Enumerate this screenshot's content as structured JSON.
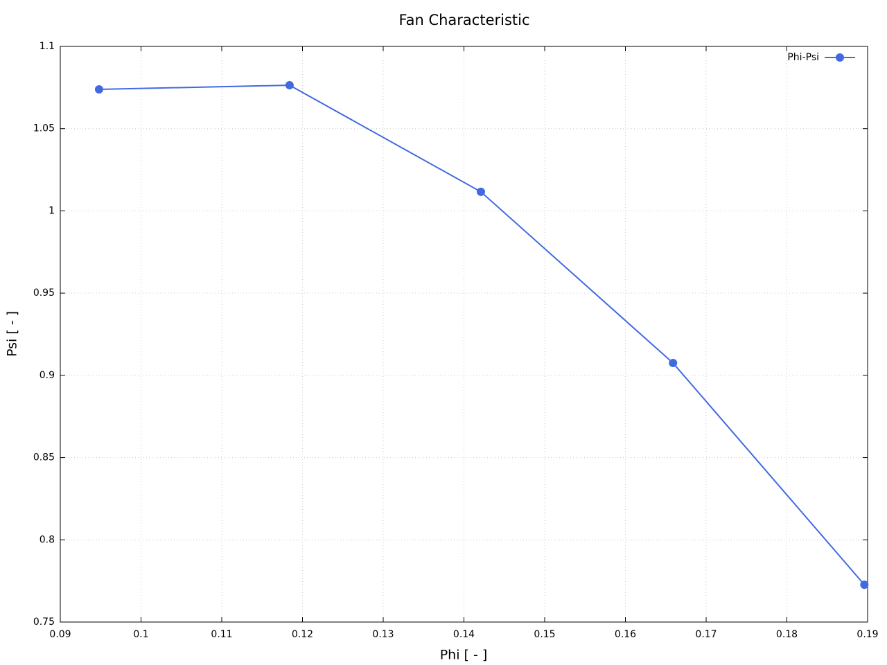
{
  "chart_data": {
    "type": "line",
    "title": "Fan Characteristic",
    "x_label": "Phi [ - ]",
    "y_label": "Psi [ - ]",
    "x": [
      0.0948,
      0.1184,
      0.1421,
      0.1659,
      0.1896
    ],
    "series": [
      {
        "name": "Phi-Psi",
        "color": "#4169e1",
        "values": [
          1.0739,
          1.0764,
          1.0116,
          0.9075,
          0.7727
        ]
      }
    ],
    "xlim": [
      0.09,
      0.19
    ],
    "xticks": [
      0.09,
      0.1,
      0.11,
      0.12,
      0.13,
      0.14,
      0.15,
      0.16,
      0.17,
      0.18,
      0.19
    ],
    "ylim": [
      0.75,
      1.1
    ],
    "yticks": [
      0.75,
      0.8,
      0.85,
      0.9,
      0.95,
      1,
      1.05,
      1.1
    ],
    "grid": true,
    "legend": "top-right"
  }
}
